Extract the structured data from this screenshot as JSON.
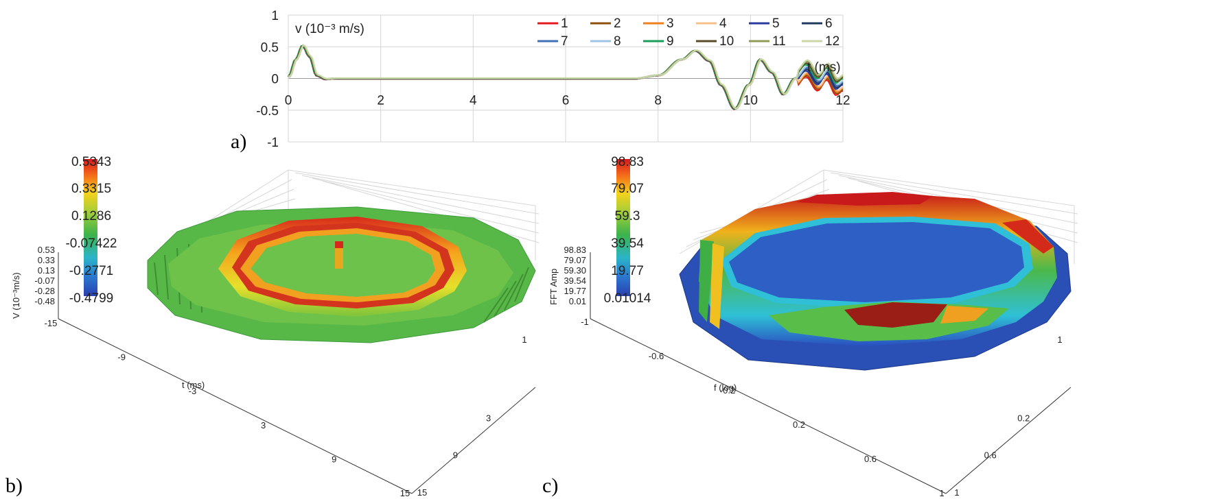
{
  "panel_labels": {
    "a": "a)",
    "b": "b)",
    "c": "c)"
  },
  "chart_data": [
    {
      "type": "line",
      "panel": "a)",
      "ylabel": "v (10⁻³ m/s)",
      "xlabel": "t (ms)",
      "xlim": [
        0,
        12
      ],
      "ylim": [
        -1,
        1
      ],
      "x_ticks": [
        "0",
        "2",
        "4",
        "6",
        "8",
        "10",
        "12"
      ],
      "y_ticks": [
        "1",
        "0.5",
        "0",
        "-0.5",
        "-1"
      ],
      "grid": true,
      "legend_placement": "top-right",
      "series": [
        {
          "name": "1",
          "color": "#e41a1c"
        },
        {
          "name": "2",
          "color": "#8c510a"
        },
        {
          "name": "3",
          "color": "#f07f1e"
        },
        {
          "name": "4",
          "color": "#f5c08a"
        },
        {
          "name": "5",
          "color": "#2b3a9e"
        },
        {
          "name": "6",
          "color": "#1f3a5f"
        },
        {
          "name": "7",
          "color": "#3f6fb5"
        },
        {
          "name": "8",
          "color": "#9fc3e6"
        },
        {
          "name": "9",
          "color": "#1a9e5a"
        },
        {
          "name": "10",
          "color": "#5a4a2a"
        },
        {
          "name": "11",
          "color": "#8f9a55"
        },
        {
          "name": "12",
          "color": "#c9d7a6"
        }
      ],
      "x": [
        0,
        0.15,
        0.3,
        0.45,
        0.6,
        0.8,
        1,
        2,
        4,
        6,
        7.5,
        8,
        8.5,
        8.8,
        9.1,
        9.35,
        9.65,
        9.95,
        10.2,
        10.45,
        10.7,
        10.95,
        11.2,
        11.45,
        11.65,
        11.85,
        12
      ],
      "y": [
        0.03,
        0.3,
        0.52,
        0.35,
        0.05,
        -0.01,
        0,
        0,
        0,
        0,
        0,
        0.05,
        0.3,
        0.44,
        0.28,
        -0.1,
        -0.48,
        -0.1,
        0.3,
        0.1,
        -0.25,
        0.0,
        0.17,
        -0.05,
        0.12,
        -0.12,
        -0.05
      ]
    },
    {
      "type": "surface3d",
      "panel": "b)",
      "zlabel": "V (10⁻³m/s)",
      "xlabel": "t (ms)",
      "colorbar_ticks": [
        "0.5343",
        "0.3315",
        "0.1286",
        "-0.07422",
        "-0.2771",
        "-0.4799"
      ],
      "z_ticks": [
        "0.53",
        "0.33",
        "0.13",
        "-0.07",
        "-0.28",
        "-0.48"
      ],
      "x_ticks": [
        "-15",
        "-9",
        "-3",
        "3",
        "9",
        "15"
      ],
      "y_ticks": [
        "15",
        "9",
        "3"
      ],
      "y_ticks_partial": [
        "1"
      ]
    },
    {
      "type": "surface3d",
      "panel": "c)",
      "zlabel": "FFT Amp",
      "xlabel": "f (log)",
      "colorbar_ticks": [
        "98.83",
        "79.07",
        "59.3",
        "39.54",
        "19.77",
        "0.01014"
      ],
      "z_ticks": [
        "98.83",
        "79.07",
        "59.30",
        "39.54",
        "19.77",
        "0.01"
      ],
      "x_ticks": [
        "-1",
        "-0.6",
        "-0.2",
        "0.2",
        "0.6",
        "1"
      ],
      "y_ticks": [
        "1",
        "0.6",
        "0.2"
      ],
      "y_ticks_partial": [
        "1"
      ]
    }
  ]
}
